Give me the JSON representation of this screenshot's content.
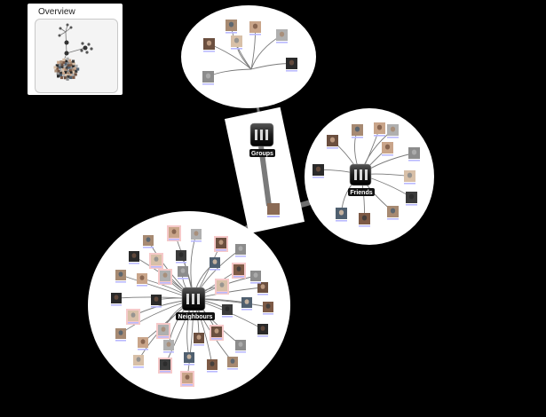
{
  "overview": {
    "title": "Overview"
  },
  "hubs": {
    "groups": {
      "label": "Groups"
    },
    "friends": {
      "label": "Friends"
    },
    "neighbours": {
      "label": "Neighbours"
    }
  },
  "colors": {
    "background": "#000000",
    "bubble": "#ffffff",
    "edge": "#7a7a7a",
    "hub": "#1a1a1a",
    "highlight_tile": "#f6c9c9",
    "caption": "#b9b9ff"
  }
}
